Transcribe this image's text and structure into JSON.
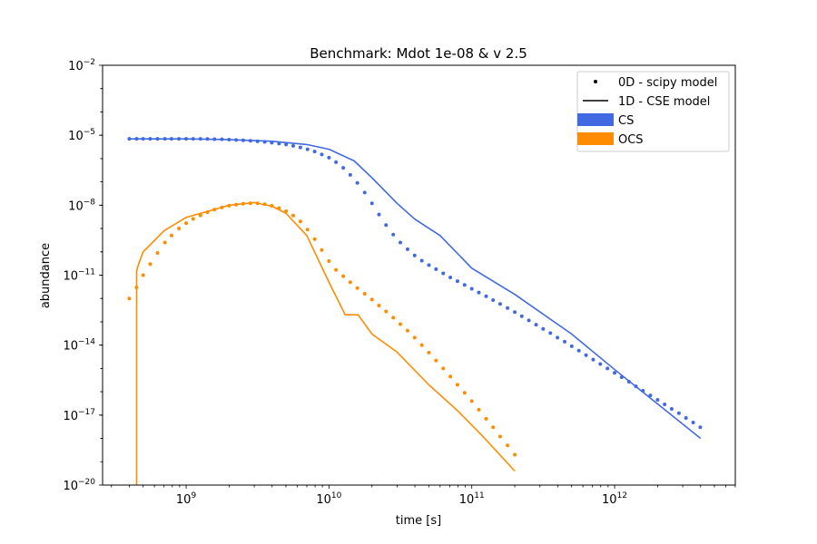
{
  "chart_data": {
    "type": "line",
    "title": "Benchmark: Mdot 1e-08 & v 2.5",
    "xlabel": "time [s]",
    "ylabel": "abundance",
    "x_scale": "log",
    "y_scale": "log",
    "xlim": [
      260000000.0,
      7000000000000.0
    ],
    "ylim": [
      1e-20,
      0.01
    ],
    "xticks": [
      {
        "value": 1000000000.0,
        "base": "10",
        "exp": "9"
      },
      {
        "value": 10000000000.0,
        "base": "10",
        "exp": "10"
      },
      {
        "value": 100000000000.0,
        "base": "10",
        "exp": "11"
      },
      {
        "value": 1000000000000.0,
        "base": "10",
        "exp": "12"
      }
    ],
    "yticks": [
      {
        "value": 1e-20,
        "base": "10",
        "exp": "−20"
      },
      {
        "value": 1e-17,
        "base": "10",
        "exp": "−17"
      },
      {
        "value": 1e-14,
        "base": "10",
        "exp": "−14"
      },
      {
        "value": 1e-11,
        "base": "10",
        "exp": "−11"
      },
      {
        "value": 1e-08,
        "base": "10",
        "exp": "−8"
      },
      {
        "value": 1e-05,
        "base": "10",
        "exp": "−5"
      },
      {
        "value": 0.01,
        "base": "10",
        "exp": "−2"
      }
    ],
    "grid": false,
    "legend_position": "top-right",
    "legend": {
      "markers": [
        {
          "label": "0D - scipy model",
          "style": "dot"
        },
        {
          "label": "1D - CSE model",
          "style": "line"
        }
      ]
    },
    "series": [
      {
        "name": "CS",
        "color": "#4169e1",
        "model_1d": {
          "x": [
            400000000.0,
            600000000.0,
            1000000000.0,
            2000000000.0,
            4000000000.0,
            7000000000.0,
            10000000000.0,
            15000000000.0,
            20000000000.0,
            30000000000.0,
            40000000000.0,
            60000000000.0,
            100000000000.0,
            200000000000.0,
            500000000000.0,
            1000000000000.0,
            2000000000000.0,
            4000000000000.0
          ],
          "y": [
            7e-06,
            7e-06,
            7e-06,
            6.5e-06,
            5.5e-06,
            4e-06,
            2.5e-06,
            8e-07,
            1.5e-07,
            1.2e-08,
            2.5e-09,
            5e-10,
            2e-11,
            1.5e-12,
            3e-14,
            9e-16,
            3e-17,
            1e-18
          ]
        },
        "model_0d": {
          "x": [
            400000000.0,
            450000000.0,
            500000000.0,
            560000000.0,
            630000000.0,
            710000000.0,
            790000000.0,
            890000000.0,
            1000000000.0,
            1120000000.0,
            1260000000.0,
            1410000000.0,
            1580000000.0,
            1780000000.0,
            2000000000.0,
            2240000000.0,
            2510000000.0,
            2820000000.0,
            3160000000.0,
            3550000000.0,
            3980000000.0,
            4470000000.0,
            5010000000.0,
            5620000000.0,
            6310000000.0,
            7080000000.0,
            7940000000.0,
            8910000000.0,
            10000000000.0,
            11200000000.0,
            12600000000.0,
            14100000000.0,
            15800000000.0,
            17800000000.0,
            20000000000.0,
            22400000000.0,
            25100000000.0,
            28200000000.0,
            31600000000.0,
            35500000000.0,
            39800000000.0,
            44700000000.0,
            50100000000.0,
            56200000000.0,
            63100000000.0,
            70800000000.0,
            79400000000.0,
            89100000000.0,
            100000000000.0,
            112000000000.0,
            126000000000.0,
            141000000000.0,
            158000000000.0,
            178000000000.0,
            200000000000.0,
            224000000000.0,
            251000000000.0,
            282000000000.0,
            316000000000.0,
            355000000000.0,
            398000000000.0,
            447000000000.0,
            501000000000.0,
            562000000000.0,
            631000000000.0,
            708000000000.0,
            794000000000.0,
            891000000000.0,
            1000000000000.0,
            1120000000000.0,
            1260000000000.0,
            1410000000000.0,
            1580000000000.0,
            1780000000000.0,
            2000000000000.0,
            2240000000000.0,
            2510000000000.0,
            2820000000000.0,
            3160000000000.0,
            3550000000000.0,
            3980000000000.0
          ],
          "y": [
            7e-06,
            7e-06,
            7e-06,
            7e-06,
            7e-06,
            7e-06,
            7e-06,
            7e-06,
            7e-06,
            7e-06,
            7e-06,
            6.9e-06,
            6.8e-06,
            6.7e-06,
            6.5e-06,
            6.3e-06,
            6.1e-06,
            5.8e-06,
            5.5e-06,
            5.2e-06,
            4.8e-06,
            4.4e-06,
            4e-06,
            3.5e-06,
            3e-06,
            2.5e-06,
            2e-06,
            1.5e-06,
            1.1e-06,
            7e-07,
            4e-07,
            2e-07,
            9e-08,
            3.5e-08,
            1.2e-08,
            4e-09,
            1.4e-09,
            5.5e-10,
            2.5e-10,
            1.3e-10,
            7e-11,
            4.2e-11,
            2.7e-11,
            1.8e-11,
            1.2e-11,
            8e-12,
            5.5e-12,
            3.8e-12,
            2.6e-12,
            1.8e-12,
            1.25e-12,
            8.5e-13,
            5.8e-13,
            3.9e-13,
            2.6e-13,
            1.75e-13,
            1.15e-13,
            7.5e-14,
            5e-14,
            3.3e-14,
            2.1e-14,
            1.4e-14,
            9e-15,
            5.8e-15,
            3.7e-15,
            2.4e-15,
            1.55e-15,
            1e-15,
            6.5e-16,
            4.2e-16,
            2.7e-16,
            1.7e-16,
            1.1e-16,
            7e-17,
            4.5e-17,
            2.9e-17,
            1.85e-17,
            1.2e-17,
            7.5e-18,
            4.8e-18,
            3e-18
          ]
        }
      },
      {
        "name": "OCS",
        "color": "#ff8c00",
        "model_1d": {
          "x": [
            450000000.0,
            450000000.0,
            460000000.0,
            500000000.0,
            700000000.0,
            1000000000.0,
            1500000000.0,
            2000000000.0,
            3000000000.0,
            4000000000.0,
            5000000000.0,
            7000000000.0,
            10000000000.0,
            13000000000.0,
            16000000000.0,
            20000000000.0,
            30000000000.0,
            50000000000.0,
            80000000000.0,
            120000000000.0,
            200000000000.0
          ],
          "y": [
            1e-20,
            1.5e-11,
            2.5e-11,
            1e-10,
            8e-10,
            3e-09,
            6e-09,
            1e-08,
            1.3e-08,
            9e-09,
            4.5e-09,
            5e-10,
            5e-12,
            2e-13,
            2e-13,
            3e-14,
            5e-15,
            2e-16,
            1.5e-17,
            1.2e-18,
            4e-20
          ]
        },
        "model_0d": {
          "x": [
            400000000.0,
            450000000.0,
            500000000.0,
            560000000.0,
            630000000.0,
            710000000.0,
            790000000.0,
            890000000.0,
            1000000000.0,
            1120000000.0,
            1260000000.0,
            1410000000.0,
            1580000000.0,
            1780000000.0,
            2000000000.0,
            2240000000.0,
            2510000000.0,
            2820000000.0,
            3160000000.0,
            3550000000.0,
            3980000000.0,
            4470000000.0,
            5010000000.0,
            5620000000.0,
            6310000000.0,
            7080000000.0,
            7940000000.0,
            8910000000.0,
            10000000000.0,
            11200000000.0,
            12600000000.0,
            14100000000.0,
            15800000000.0,
            17800000000.0,
            20000000000.0,
            22400000000.0,
            25100000000.0,
            28200000000.0,
            31600000000.0,
            35500000000.0,
            39800000000.0,
            44700000000.0,
            50100000000.0,
            56200000000.0,
            63100000000.0,
            70800000000.0,
            79400000000.0,
            89100000000.0,
            100000000000.0,
            112000000000.0,
            126000000000.0,
            141000000000.0,
            158000000000.0,
            178000000000.0,
            200000000000.0
          ],
          "y": [
            1e-12,
            3e-12,
            1e-11,
            3e-11,
            9e-11,
            2.5e-10,
            5e-10,
            1e-09,
            1.7e-09,
            2.6e-09,
            3.7e-09,
            5e-09,
            6.5e-09,
            8e-09,
            9.5e-09,
            1.05e-08,
            1.15e-08,
            1.2e-08,
            1.2e-08,
            1.1e-08,
            9.5e-09,
            7.5e-09,
            5.5e-09,
            3.6e-09,
            2e-09,
            9e-10,
            3.5e-10,
            1.2e-10,
            4e-11,
            1.7e-11,
            9e-12,
            5e-12,
            2.8e-12,
            1.6e-12,
            9e-13,
            5e-13,
            2.8e-13,
            1.5e-13,
            8e-14,
            4.2e-14,
            2.1e-14,
            1e-14,
            4.8e-15,
            2.2e-15,
            1e-15,
            4.5e-16,
            2e-16,
            9e-17,
            4e-17,
            1.7e-17,
            7e-18,
            3e-18,
            1.2e-18,
            5e-19,
            2e-19
          ]
        }
      }
    ]
  }
}
